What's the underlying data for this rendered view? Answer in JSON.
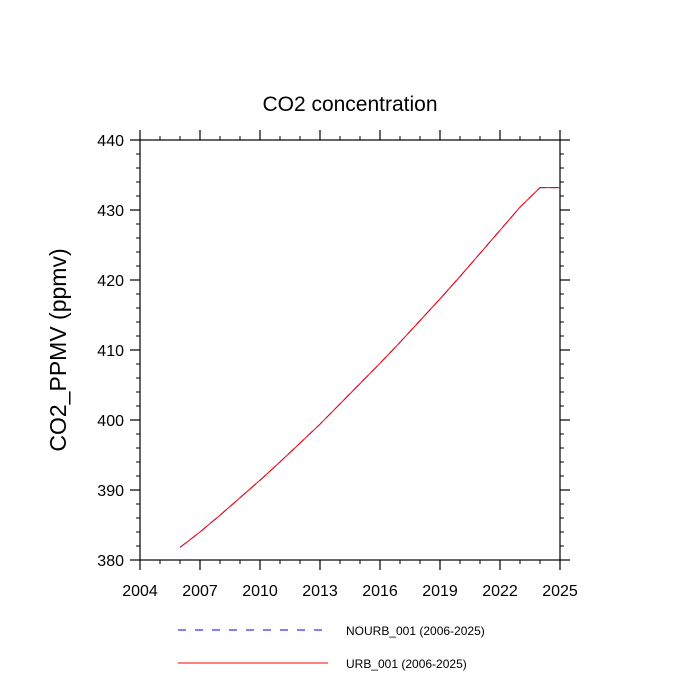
{
  "chart_data": {
    "type": "line",
    "title": "CO2 concentration",
    "xlabel": "",
    "ylabel": "CO2_PPMV  (ppmv)",
    "xlim": [
      2004,
      2025
    ],
    "ylim": [
      380,
      440
    ],
    "xticks": [
      2004,
      2007,
      2010,
      2013,
      2016,
      2019,
      2022,
      2025
    ],
    "yticks": [
      380,
      390,
      400,
      410,
      420,
      430,
      440
    ],
    "grid": false,
    "legend_position": "bottom",
    "x": [
      2006,
      2007,
      2008,
      2009,
      2010,
      2011,
      2012,
      2013,
      2014,
      2015,
      2016,
      2017,
      2018,
      2019,
      2020,
      2021,
      2022,
      2023,
      2024,
      2025
    ],
    "series": [
      {
        "name": "NOURB_001 (2006-2025)",
        "color": "#0000ff",
        "style": "dashed",
        "values": [
          381.8,
          384.0,
          386.4,
          388.9,
          391.4,
          394.0,
          396.7,
          399.4,
          402.3,
          405.2,
          408.1,
          411.1,
          414.2,
          417.3,
          420.5,
          423.8,
          427.1,
          430.4,
          433.2,
          433.2
        ]
      },
      {
        "name": "URB_001 (2006-2025)",
        "color": "#ff0000",
        "style": "solid",
        "values": [
          381.8,
          384.0,
          386.4,
          388.9,
          391.4,
          394.0,
          396.7,
          399.4,
          402.3,
          405.2,
          408.1,
          411.1,
          414.2,
          417.3,
          420.5,
          423.8,
          427.1,
          430.4,
          433.2,
          433.2
        ]
      }
    ]
  }
}
